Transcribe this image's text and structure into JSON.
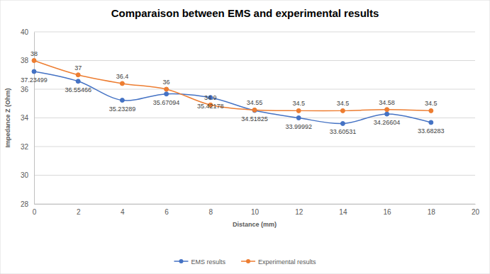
{
  "chart_data": {
    "type": "line",
    "title": "Comparaison between EMS and experimental results",
    "x_label": "Distance (mm)",
    "y_label": "Impedance Z (Ohm)",
    "x": [
      0,
      2,
      4,
      6,
      8,
      10,
      12,
      14,
      16,
      18
    ],
    "series": [
      {
        "name": "EMS results",
        "color": "#4472c4",
        "marker": "circle",
        "line_style": "solid",
        "values": [
          37.23499,
          36.55466,
          35.23289,
          35.67094,
          35.42178,
          34.51825,
          33.99992,
          33.60531,
          34.26604,
          33.68283
        ]
      },
      {
        "name": "Experimental results",
        "color": "#ed7d31",
        "marker": "circle",
        "line_style": "solid",
        "values": [
          38,
          37,
          36.4,
          36,
          34.9,
          34.55,
          34.5,
          34.5,
          34.58,
          34.5
        ]
      }
    ],
    "xlim": [
      0,
      20
    ],
    "xticks": [
      0,
      2,
      4,
      6,
      8,
      10,
      12,
      14,
      16,
      18,
      20
    ],
    "ylim": [
      28,
      40
    ],
    "yticks": [
      28,
      30,
      32,
      34,
      36,
      38,
      40
    ],
    "grid": true,
    "legend": "bottom",
    "data_labels": true
  }
}
